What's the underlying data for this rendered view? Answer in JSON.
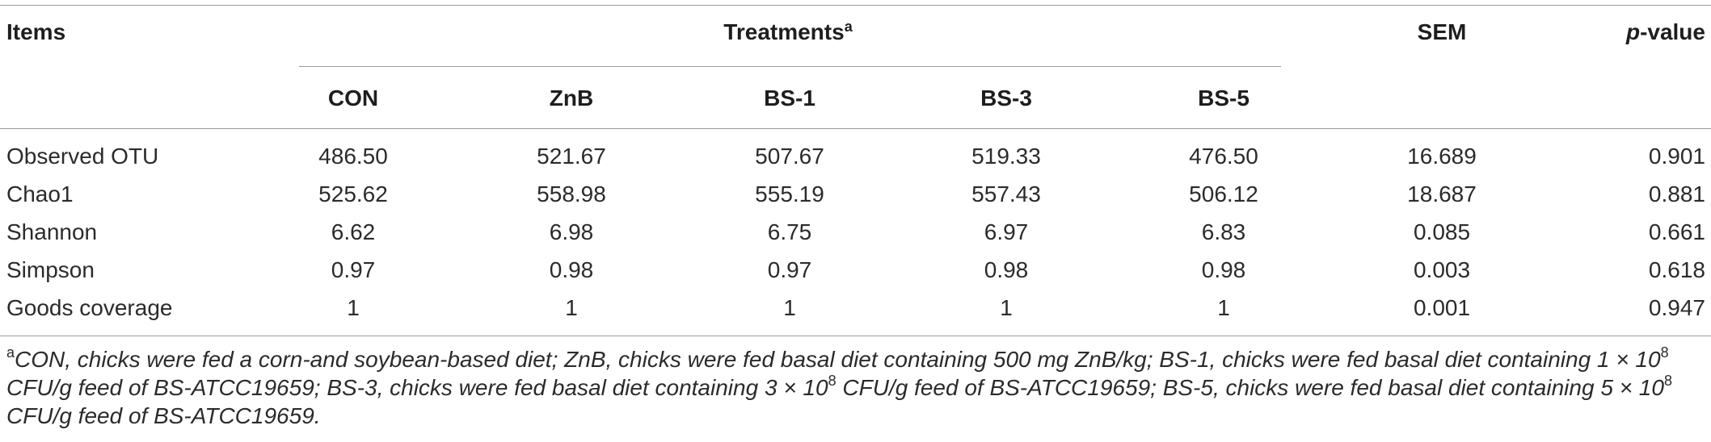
{
  "table": {
    "header": {
      "items": "Items",
      "treatments": "Treatments",
      "treatments_sup": "a",
      "sem": "SEM",
      "pvalue_italic": "p",
      "pvalue_rest": "-value",
      "groups": [
        "CON",
        "ZnB",
        "BS-1",
        "BS-3",
        "BS-5"
      ]
    },
    "rows": [
      {
        "item": "Observed OTU",
        "values": [
          "486.50",
          "521.67",
          "507.67",
          "519.33",
          "476.50"
        ],
        "sem": "16.689",
        "p": "0.901"
      },
      {
        "item": "Chao1",
        "values": [
          "525.62",
          "558.98",
          "555.19",
          "557.43",
          "506.12"
        ],
        "sem": "18.687",
        "p": "0.881"
      },
      {
        "item": "Shannon",
        "values": [
          "6.62",
          "6.98",
          "6.75",
          "6.97",
          "6.83"
        ],
        "sem": "0.085",
        "p": "0.661"
      },
      {
        "item": "Simpson",
        "values": [
          "0.97",
          "0.98",
          "0.97",
          "0.98",
          "0.98"
        ],
        "sem": "0.003",
        "p": "0.618"
      },
      {
        "item": "Goods coverage",
        "values": [
          "1",
          "1",
          "1",
          "1",
          "1"
        ],
        "sem": "0.001",
        "p": "0.947"
      }
    ]
  },
  "footnote": {
    "marker": "a",
    "line1": "CON, chicks were fed a corn-and soybean-based diet; ZnB, chicks were fed basal diet containing 500 mg ZnB/kg; BS-1, chicks were fed basal diet containing 1 × 10",
    "line1_sup": "8",
    "line2_a": "CFU/g feed of BS-ATCC19659; BS-3, chicks were fed basal diet containing 3 × 10",
    "line2_sup": "8",
    "line2_b": " CFU/g feed of BS-ATCC19659; BS-5, chicks were fed basal diet containing 5 × 10",
    "line2_sup2": "8",
    "line3": "CFU/g feed of BS-ATCC19659."
  }
}
